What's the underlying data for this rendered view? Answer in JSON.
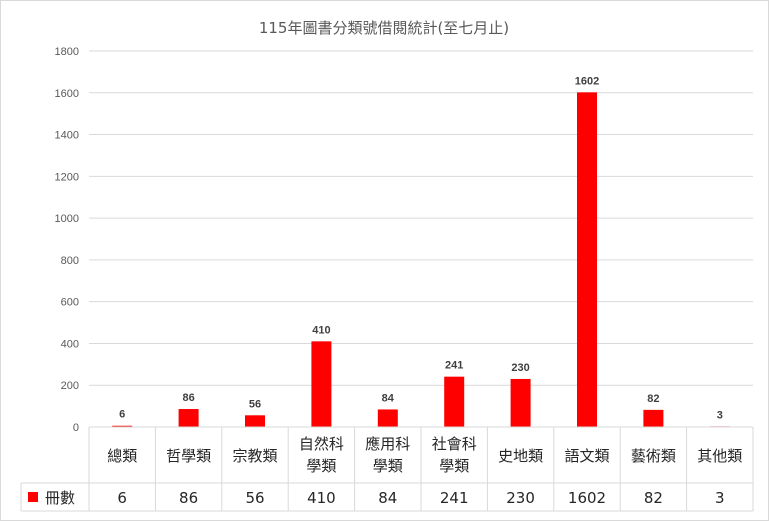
{
  "chart_data": {
    "type": "bar",
    "title": "115年圖書分類號借閱統計(至七月止)",
    "categories": [
      [
        "總類"
      ],
      [
        "哲學類"
      ],
      [
        "宗教類"
      ],
      [
        "自然科",
        "學類"
      ],
      [
        "應用科",
        "學類"
      ],
      [
        "社會科",
        "學類"
      ],
      [
        "史地類"
      ],
      [
        "語文類"
      ],
      [
        "藝術類"
      ],
      [
        "其他類"
      ]
    ],
    "series": [
      {
        "name": "冊數",
        "values": [
          6,
          86,
          56,
          410,
          84,
          241,
          230,
          1602,
          82,
          3
        ]
      }
    ],
    "ylim": [
      0,
      1800
    ],
    "yticks": [
      0,
      200,
      400,
      600,
      800,
      1000,
      1200,
      1400,
      1600,
      1800
    ],
    "grid": true,
    "legend": "data-table",
    "colors": {
      "bar": "#ff0000",
      "grid": "#d9d9d9",
      "text": "#595959"
    }
  }
}
